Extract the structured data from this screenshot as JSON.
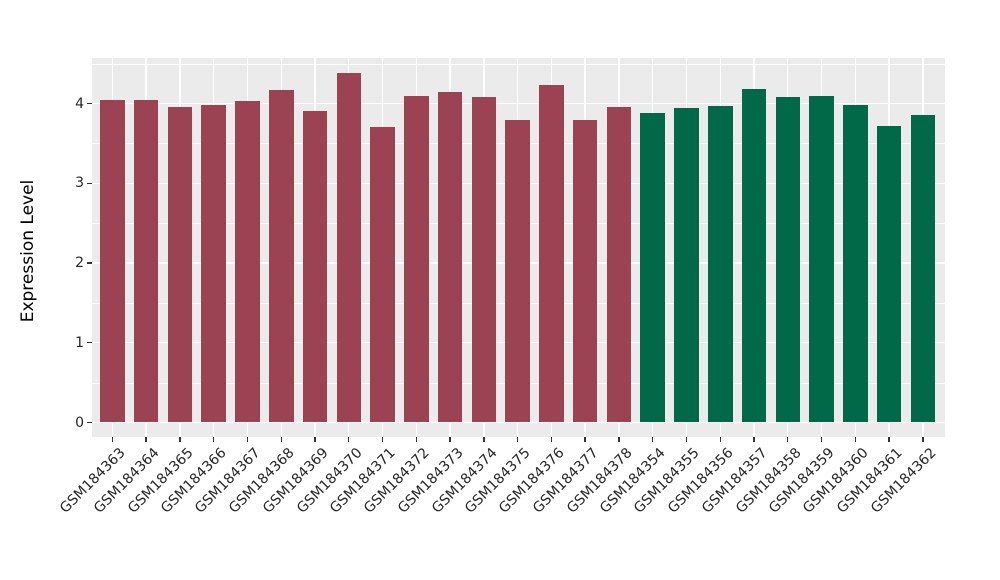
{
  "chart_data": {
    "type": "bar",
    "title": "",
    "xlabel": "",
    "ylabel": "Expression Level",
    "ylim": [
      0,
      4.57
    ],
    "yticks": [
      0,
      1,
      2,
      3,
      4
    ],
    "minor_grid_step": 0.5,
    "grid": true,
    "legend": false,
    "panel_bg": "#EBEBEB",
    "gridline_color": "#FFFFFF",
    "axis_text_color": "#262626",
    "tick_mark_color": "#333333",
    "groups": [
      {
        "name": "group-1",
        "color": "#9B4352"
      },
      {
        "name": "group-2",
        "color": "#016947"
      }
    ],
    "bars": [
      {
        "label": "GSM184363",
        "value": 4.04,
        "group": 0
      },
      {
        "label": "GSM184364",
        "value": 4.05,
        "group": 0
      },
      {
        "label": "GSM184365",
        "value": 3.96,
        "group": 0
      },
      {
        "label": "GSM184366",
        "value": 3.98,
        "group": 0
      },
      {
        "label": "GSM184367",
        "value": 4.03,
        "group": 0
      },
      {
        "label": "GSM184368",
        "value": 4.17,
        "group": 0
      },
      {
        "label": "GSM184369",
        "value": 3.91,
        "group": 0
      },
      {
        "label": "GSM184370",
        "value": 4.38,
        "group": 0
      },
      {
        "label": "GSM184371",
        "value": 3.71,
        "group": 0
      },
      {
        "label": "GSM184372",
        "value": 4.1,
        "group": 0
      },
      {
        "label": "GSM184373",
        "value": 4.14,
        "group": 0
      },
      {
        "label": "GSM184374",
        "value": 4.08,
        "group": 0
      },
      {
        "label": "GSM184375",
        "value": 3.79,
        "group": 0
      },
      {
        "label": "GSM184376",
        "value": 4.23,
        "group": 0
      },
      {
        "label": "GSM184377",
        "value": 3.79,
        "group": 0
      },
      {
        "label": "GSM184378",
        "value": 3.96,
        "group": 0
      },
      {
        "label": "GSM184354",
        "value": 3.88,
        "group": 1
      },
      {
        "label": "GSM184355",
        "value": 3.94,
        "group": 1
      },
      {
        "label": "GSM184356",
        "value": 3.97,
        "group": 1
      },
      {
        "label": "GSM184357",
        "value": 4.18,
        "group": 1
      },
      {
        "label": "GSM184358",
        "value": 4.08,
        "group": 1
      },
      {
        "label": "GSM184359",
        "value": 4.09,
        "group": 1
      },
      {
        "label": "GSM184360",
        "value": 3.98,
        "group": 1
      },
      {
        "label": "GSM184361",
        "value": 3.72,
        "group": 1
      },
      {
        "label": "GSM184362",
        "value": 3.86,
        "group": 1
      }
    ]
  }
}
